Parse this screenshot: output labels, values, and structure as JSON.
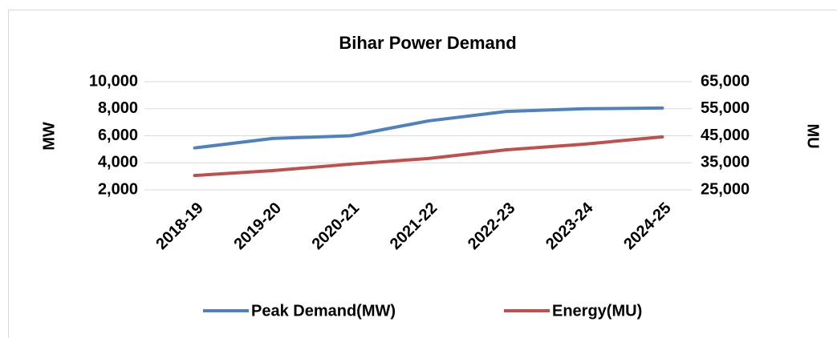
{
  "chart_data": {
    "type": "line",
    "title": "Bihar Power Demand",
    "categories": [
      "2018-19",
      "2019-20",
      "2020-21",
      "2021-22",
      "2022-23",
      "2023-24",
      "2024-25"
    ],
    "series": [
      {
        "name": "Peak Demand(MW)",
        "color": "#4f81bd",
        "values": [
          5100,
          5800,
          6000,
          7100,
          7800,
          8000,
          8050
        ]
      },
      {
        "name": "Energy(MU)",
        "color": "#c0504d",
        "axis": "y2",
        "values": [
          30300,
          32100,
          34500,
          36600,
          39800,
          41900,
          44600
        ]
      }
    ],
    "y_label": "MW",
    "y2_label": "MU",
    "ylim": [
      2000,
      10000
    ],
    "yticks": [
      {
        "value": 2000,
        "label": "2,000"
      },
      {
        "value": 4000,
        "label": "4,000"
      },
      {
        "value": 6000,
        "label": "6,000"
      },
      {
        "value": 8000,
        "label": "8,000"
      },
      {
        "value": 10000,
        "label": "10,000"
      }
    ],
    "y2lim": [
      25000,
      65000
    ],
    "y2ticks": [
      {
        "value": 25000,
        "label": "25,000"
      },
      {
        "value": 35000,
        "label": "35,000"
      },
      {
        "value": 45000,
        "label": "45,000"
      },
      {
        "value": 55000,
        "label": "55,000"
      },
      {
        "value": 65000,
        "label": "65,000"
      }
    ],
    "grid": true,
    "legend": "bottom"
  }
}
